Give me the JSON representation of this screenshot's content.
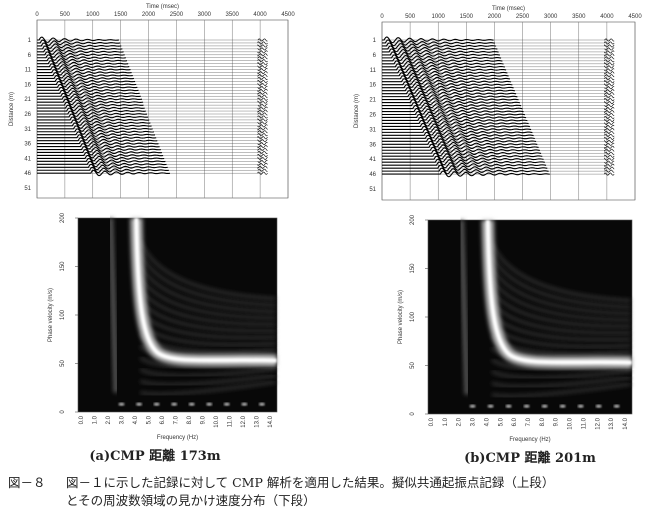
{
  "figure": {
    "panels": [
      {
        "record": {
          "x_label": "Time (msec)",
          "y_label": "Distance (m)",
          "x_ticks": [
            "0",
            "500",
            "1000",
            "1500",
            "2000",
            "2500",
            "3000",
            "3500",
            "4000",
            "4500"
          ],
          "y_ticks": [
            "1",
            "6",
            "11",
            "16",
            "21",
            "26",
            "31",
            "36",
            "41",
            "46",
            "51"
          ]
        },
        "dispersion": {
          "y_label": "Phase velocity (m/s)",
          "x_label": "Frequency (Hz)",
          "y_ticks": [
            "0",
            "50",
            "100",
            "150",
            "200"
          ],
          "x_ticks": [
            "0.0",
            "1.0",
            "2.0",
            "3.0",
            "4.0",
            "5.0",
            "6.0",
            "7.0",
            "8.0",
            "9.0",
            "10.0",
            "11.0",
            "12.0",
            "13.0",
            "14.0"
          ]
        },
        "caption": "(a)CMP 距離 173m"
      },
      {
        "record": {
          "x_label": "Time (msec)",
          "y_label": "Distance (m)",
          "x_ticks": [
            "0",
            "500",
            "1000",
            "1500",
            "2000",
            "2500",
            "3000",
            "3500",
            "4000",
            "4500"
          ],
          "y_ticks": [
            "1",
            "6",
            "11",
            "16",
            "21",
            "26",
            "31",
            "36",
            "41",
            "46",
            "51"
          ]
        },
        "dispersion": {
          "y_label": "Phase velocity (m/s)",
          "x_label": "Frequency (Hz)",
          "y_ticks": [
            "0",
            "50",
            "100",
            "150",
            "200"
          ],
          "x_ticks": [
            "0.0",
            "1.0",
            "2.0",
            "3.0",
            "4.0",
            "5.0",
            "6.0",
            "7.0",
            "8.0",
            "9.0",
            "10.0",
            "11.0",
            "12.0",
            "13.0",
            "14.0"
          ]
        },
        "caption": "(b)CMP 距離 201m"
      }
    ],
    "caption": {
      "number": "図－８",
      "lines": [
        "図－１に示した記録に対して CMP 解析を適用した結果。擬似共通起振点記録（上段）",
        "とその周波数領域の見かけ速度分布（下段）"
      ]
    }
  }
}
